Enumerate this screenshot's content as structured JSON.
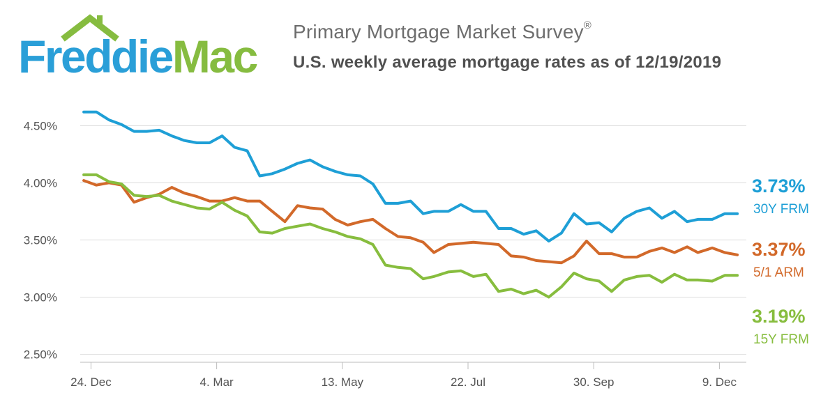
{
  "header": {
    "logo_part1": "Freddie",
    "logo_part2": "Mac",
    "title": "Primary Mortgage Market Survey",
    "title_mark": "®",
    "subtitle": "U.S. weekly average mortgage rates as of 12/19/2019"
  },
  "colors": {
    "logo_blue": "#2a9fd8",
    "logo_green": "#86bc40",
    "frm30": "#1e9fd6",
    "arm51": "#d2692a",
    "frm15": "#87bd3e",
    "grid": "#dcdcdc",
    "plot_bg": "#ffffff"
  },
  "chart_data": {
    "type": "line",
    "x": [
      "2018-12-20",
      "2018-12-27",
      "2019-01-03",
      "2019-01-10",
      "2019-01-17",
      "2019-01-24",
      "2019-01-31",
      "2019-02-07",
      "2019-02-14",
      "2019-02-21",
      "2019-02-28",
      "2019-03-07",
      "2019-03-14",
      "2019-03-21",
      "2019-03-28",
      "2019-04-04",
      "2019-04-11",
      "2019-04-18",
      "2019-04-25",
      "2019-05-02",
      "2019-05-09",
      "2019-05-16",
      "2019-05-23",
      "2019-05-30",
      "2019-06-06",
      "2019-06-13",
      "2019-06-20",
      "2019-06-27",
      "2019-07-03",
      "2019-07-11",
      "2019-07-18",
      "2019-07-25",
      "2019-08-01",
      "2019-08-08",
      "2019-08-15",
      "2019-08-22",
      "2019-08-29",
      "2019-09-05",
      "2019-09-12",
      "2019-09-19",
      "2019-09-26",
      "2019-10-03",
      "2019-10-10",
      "2019-10-17",
      "2019-10-24",
      "2019-10-31",
      "2019-11-07",
      "2019-11-14",
      "2019-11-21",
      "2019-11-27",
      "2019-12-05",
      "2019-12-12",
      "2019-12-19"
    ],
    "x_ticks": [
      {
        "label": "24. Dec",
        "date": "2018-12-24"
      },
      {
        "label": "4. Mar",
        "date": "2019-03-04"
      },
      {
        "label": "13. May",
        "date": "2019-05-13"
      },
      {
        "label": "22. Jul",
        "date": "2019-07-22"
      },
      {
        "label": "30. Sep",
        "date": "2019-09-30"
      },
      {
        "label": "9. Dec",
        "date": "2019-12-09"
      }
    ],
    "y_ticks": [
      {
        "label": "2.50%",
        "value": 2.5
      },
      {
        "label": "3.00%",
        "value": 3.0
      },
      {
        "label": "3.50%",
        "value": 3.5
      },
      {
        "label": "4.00%",
        "value": 4.0
      },
      {
        "label": "4.50%",
        "value": 4.5
      }
    ],
    "xlim": [
      "2018-12-18",
      "2019-12-24"
    ],
    "ylim": [
      2.43,
      4.88
    ],
    "grid": "horizontal",
    "series": [
      {
        "key": "frm30",
        "name": "30Y FRM",
        "end_label": "3.73%",
        "values": [
          4.62,
          4.62,
          4.55,
          4.51,
          4.45,
          4.45,
          4.46,
          4.41,
          4.37,
          4.35,
          4.35,
          4.41,
          4.31,
          4.28,
          4.06,
          4.08,
          4.12,
          4.17,
          4.2,
          4.14,
          4.1,
          4.07,
          4.06,
          3.99,
          3.82,
          3.82,
          3.84,
          3.73,
          3.75,
          3.75,
          3.81,
          3.75,
          3.75,
          3.6,
          3.6,
          3.55,
          3.58,
          3.49,
          3.56,
          3.73,
          3.64,
          3.65,
          3.57,
          3.69,
          3.75,
          3.78,
          3.69,
          3.75,
          3.66,
          3.68,
          3.68,
          3.73,
          3.73
        ]
      },
      {
        "key": "arm51",
        "name": "5/1 ARM",
        "end_label": "3.37%",
        "values": [
          4.02,
          3.98,
          4.0,
          3.98,
          3.83,
          3.87,
          3.9,
          3.96,
          3.91,
          3.88,
          3.84,
          3.84,
          3.87,
          3.84,
          3.84,
          3.75,
          3.66,
          3.8,
          3.78,
          3.77,
          3.68,
          3.63,
          3.66,
          3.68,
          3.6,
          3.53,
          3.52,
          3.48,
          3.39,
          3.46,
          3.47,
          3.48,
          3.47,
          3.46,
          3.36,
          3.35,
          3.32,
          3.31,
          3.3,
          3.36,
          3.49,
          3.38,
          3.38,
          3.35,
          3.35,
          3.4,
          3.43,
          3.39,
          3.44,
          3.39,
          3.43,
          3.39,
          3.37
        ]
      },
      {
        "key": "frm15",
        "name": "15Y FRM",
        "end_label": "3.19%",
        "values": [
          4.07,
          4.07,
          4.01,
          3.99,
          3.89,
          3.88,
          3.89,
          3.84,
          3.81,
          3.78,
          3.77,
          3.83,
          3.76,
          3.71,
          3.57,
          3.56,
          3.6,
          3.62,
          3.64,
          3.6,
          3.57,
          3.53,
          3.51,
          3.46,
          3.28,
          3.26,
          3.25,
          3.16,
          3.18,
          3.22,
          3.23,
          3.18,
          3.2,
          3.05,
          3.07,
          3.03,
          3.06,
          3.0,
          3.09,
          3.21,
          3.16,
          3.14,
          3.05,
          3.15,
          3.18,
          3.19,
          3.13,
          3.2,
          3.15,
          3.15,
          3.14,
          3.19,
          3.19
        ]
      }
    ]
  }
}
